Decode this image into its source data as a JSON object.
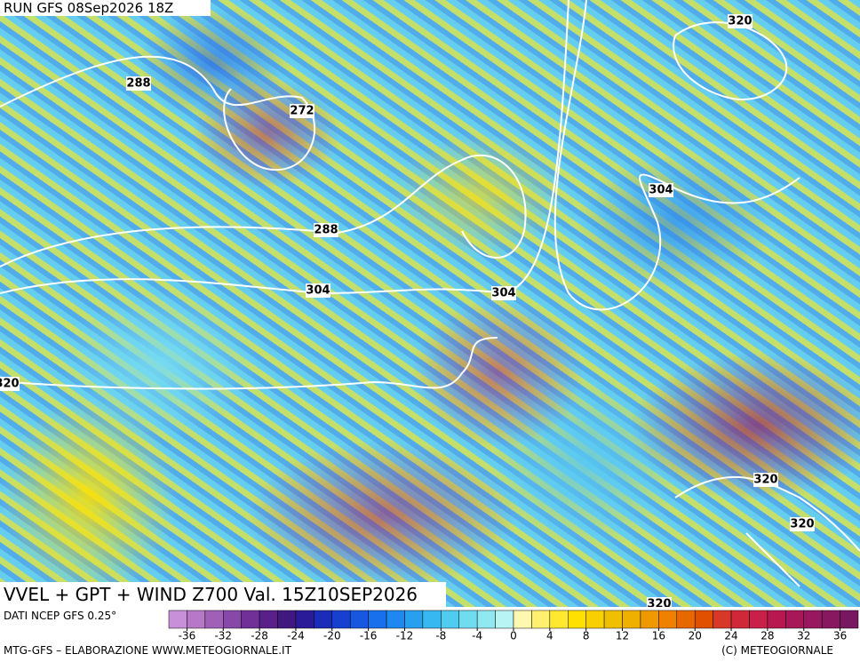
{
  "header": {
    "run": "RUN GFS 08Sep2026 18Z"
  },
  "title": "VVEL + GPT + WIND Z700 Val. 15Z10SEP2026",
  "contour_labels": [
    320,
    288,
    272,
    304,
    288,
    304,
    304,
    320,
    320,
    320,
    320
  ],
  "colorbar": {
    "range": [
      -38,
      38
    ],
    "step": 2,
    "ticks": [
      -36,
      -32,
      -28,
      -24,
      -20,
      -16,
      -12,
      -8,
      -4,
      0,
      4,
      8,
      12,
      16,
      20,
      24,
      28,
      32,
      36
    ],
    "colors": [
      "#c890d8",
      "#b878c8",
      "#a060b8",
      "#8848a8",
      "#703098",
      "#582088",
      "#401880",
      "#2a1c98",
      "#1a2cb8",
      "#1840d0",
      "#1858e0",
      "#1870ec",
      "#1e88f0",
      "#28a0f0",
      "#38b8f0",
      "#50ccf0",
      "#70dcf0",
      "#90e8f0",
      "#b8f4f4",
      "#fff8b0",
      "#fff070",
      "#ffe830",
      "#ffe000",
      "#f8d000",
      "#f0c000",
      "#f0b000",
      "#f09800",
      "#f08000",
      "#e86800",
      "#e05000",
      "#d83828",
      "#d02838",
      "#c82048",
      "#b81850",
      "#a81858",
      "#981860",
      "#881860",
      "#781860"
    ]
  },
  "source": "DATI NCEP GFS 0.25°",
  "footer": {
    "left": "MTG-GFS – ELABORAZIONE WWW.METEOGIORNALE.IT",
    "right": "(C) METEOGIORNALE"
  }
}
